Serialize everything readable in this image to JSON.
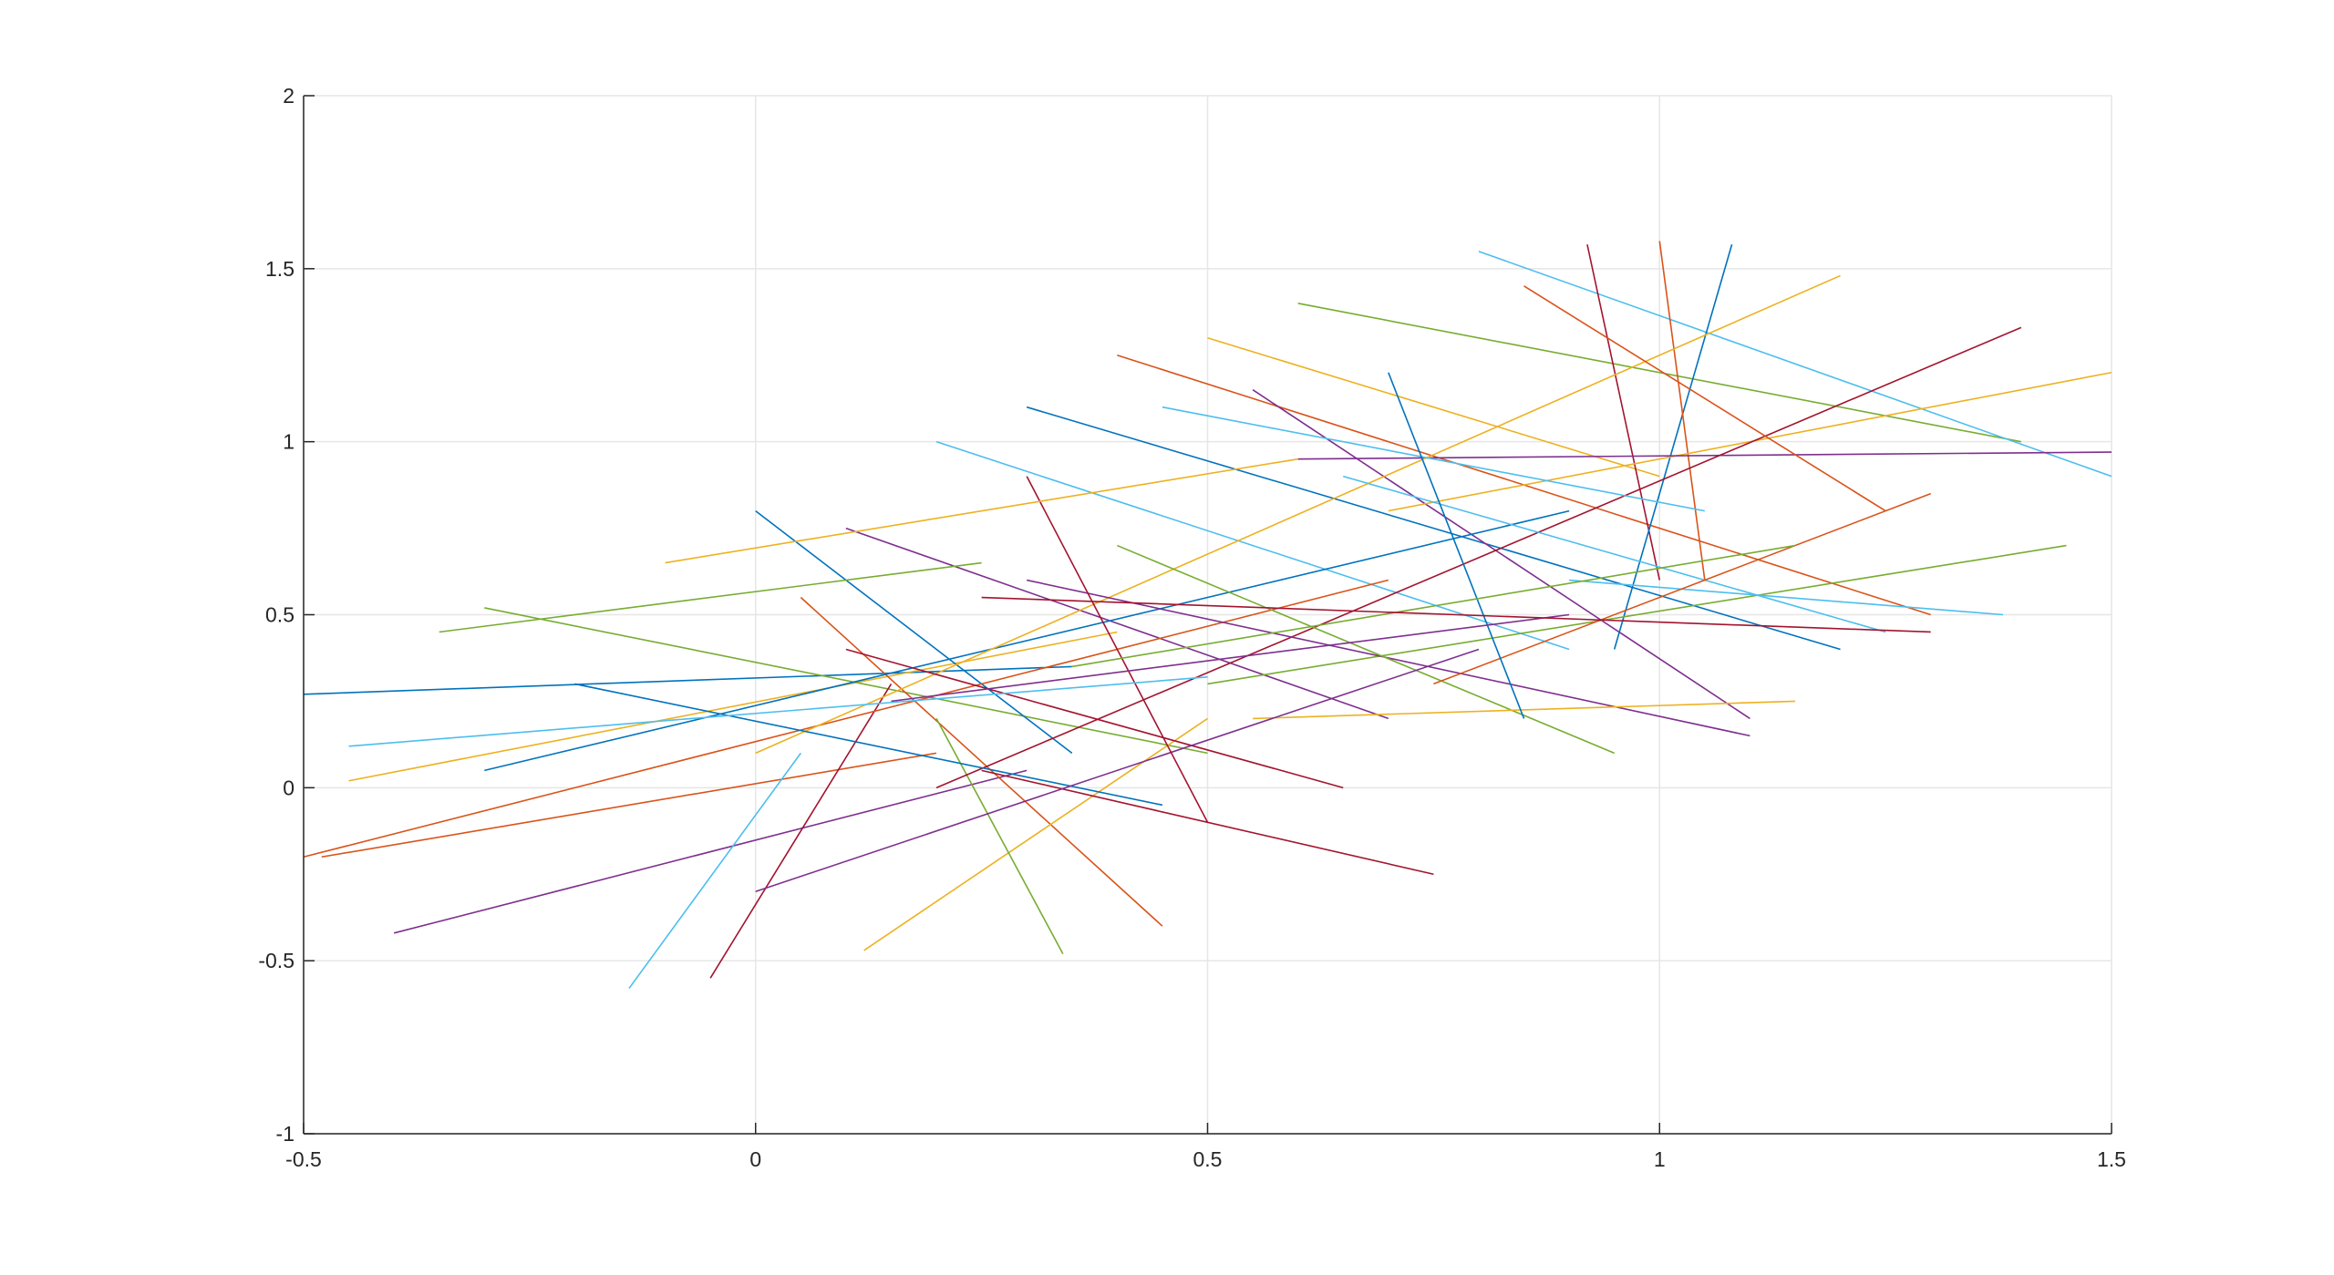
{
  "chart_data": {
    "type": "line",
    "xlim": [
      -0.5,
      1.5
    ],
    "xticks": [
      -0.5,
      0,
      0.5,
      1,
      1.5
    ],
    "ylim": [
      -1,
      2
    ],
    "yticks": [
      -1,
      -0.5,
      0,
      0.5,
      1,
      1.5,
      2
    ],
    "grid": true,
    "series": [
      {
        "color": "#0072bd",
        "x": [
          -0.5,
          0.35
        ],
        "values": [
          0.27,
          0.35
        ]
      },
      {
        "color": "#d95319",
        "x": [
          -0.48,
          0.2
        ],
        "values": [
          -0.2,
          0.1
        ]
      },
      {
        "color": "#edb120",
        "x": [
          -0.45,
          0.4
        ],
        "values": [
          0.02,
          0.45
        ]
      },
      {
        "color": "#7e2f8e",
        "x": [
          -0.4,
          0.3
        ],
        "values": [
          -0.42,
          0.05
        ]
      },
      {
        "color": "#77ac30",
        "x": [
          -0.3,
          0.5
        ],
        "values": [
          0.52,
          0.1
        ]
      },
      {
        "color": "#4dbeee",
        "x": [
          -0.14,
          0.05
        ],
        "values": [
          -0.58,
          0.1
        ]
      },
      {
        "color": "#a2142f",
        "x": [
          -0.05,
          0.15
        ],
        "values": [
          -0.55,
          0.3
        ]
      },
      {
        "color": "#0072bd",
        "x": [
          0,
          0.35
        ],
        "values": [
          0.8,
          0.1
        ]
      },
      {
        "color": "#d95319",
        "x": [
          0.05,
          0.45
        ],
        "values": [
          0.55,
          -0.4
        ]
      },
      {
        "color": "#edb120",
        "x": [
          0.12,
          0.5
        ],
        "values": [
          -0.47,
          0.2
        ]
      },
      {
        "color": "#7e2f8e",
        "x": [
          0.1,
          0.7
        ],
        "values": [
          0.75,
          0.2
        ]
      },
      {
        "color": "#77ac30",
        "x": [
          0.2,
          0.34
        ],
        "values": [
          0.2,
          -0.48
        ]
      },
      {
        "color": "#4dbeee",
        "x": [
          0.2,
          0.9
        ],
        "values": [
          1.0,
          0.4
        ]
      },
      {
        "color": "#a2142f",
        "x": [
          0.25,
          0.75
        ],
        "values": [
          0.05,
          -0.25
        ]
      },
      {
        "color": "#0072bd",
        "x": [
          0.3,
          1.2
        ],
        "values": [
          1.1,
          0.4
        ]
      },
      {
        "color": "#d95319",
        "x": [
          0.4,
          1.3
        ],
        "values": [
          1.25,
          0.5
        ]
      },
      {
        "color": "#edb120",
        "x": [
          0.5,
          1.0
        ],
        "values": [
          1.3,
          0.9
        ]
      },
      {
        "color": "#7e2f8e",
        "x": [
          0.55,
          1.1
        ],
        "values": [
          1.15,
          0.2
        ]
      },
      {
        "color": "#77ac30",
        "x": [
          0.6,
          1.4
        ],
        "values": [
          1.4,
          1.0
        ]
      },
      {
        "color": "#4dbeee",
        "x": [
          0.8,
          1.5
        ],
        "values": [
          1.55,
          0.9
        ]
      },
      {
        "color": "#a2142f",
        "x": [
          0.92,
          1.0
        ],
        "values": [
          1.57,
          0.6
        ]
      },
      {
        "color": "#0072bd",
        "x": [
          0.95,
          1.08
        ],
        "values": [
          0.4,
          1.57
        ]
      },
      {
        "color": "#d95319",
        "x": [
          1.0,
          1.05
        ],
        "values": [
          1.58,
          0.6
        ]
      },
      {
        "color": "#edb120",
        "x": [
          0.7,
          1.5
        ],
        "values": [
          0.8,
          1.2
        ]
      },
      {
        "color": "#7e2f8e",
        "x": [
          0.6,
          1.5
        ],
        "values": [
          0.95,
          0.97
        ]
      },
      {
        "color": "#77ac30",
        "x": [
          0.5,
          1.45
        ],
        "values": [
          0.3,
          0.7
        ]
      },
      {
        "color": "#4dbeee",
        "x": [
          0.9,
          1.38
        ],
        "values": [
          0.6,
          0.5
        ]
      },
      {
        "color": "#a2142f",
        "x": [
          0.2,
          1.4
        ],
        "values": [
          0.0,
          1.33
        ]
      },
      {
        "color": "#0072bd",
        "x": [
          -0.3,
          0.9
        ],
        "values": [
          0.05,
          0.8
        ]
      },
      {
        "color": "#d95319",
        "x": [
          -0.5,
          0.7
        ],
        "values": [
          -0.2,
          0.6
        ]
      },
      {
        "color": "#edb120",
        "x": [
          0.0,
          1.2
        ],
        "values": [
          0.1,
          1.48
        ]
      },
      {
        "color": "#7e2f8e",
        "x": [
          0.3,
          1.1
        ],
        "values": [
          0.6,
          0.15
        ]
      },
      {
        "color": "#77ac30",
        "x": [
          0.4,
          0.95
        ],
        "values": [
          0.7,
          0.1
        ]
      },
      {
        "color": "#4dbeee",
        "x": [
          0.65,
          1.25
        ],
        "values": [
          0.9,
          0.45
        ]
      },
      {
        "color": "#a2142f",
        "x": [
          0.1,
          0.65
        ],
        "values": [
          0.4,
          0.0
        ]
      },
      {
        "color": "#0072bd",
        "x": [
          -0.2,
          0.45
        ],
        "values": [
          0.3,
          -0.05
        ]
      },
      {
        "color": "#d95319",
        "x": [
          0.75,
          1.3
        ],
        "values": [
          0.3,
          0.85
        ]
      },
      {
        "color": "#edb120",
        "x": [
          0.55,
          1.15
        ],
        "values": [
          0.2,
          0.25
        ]
      },
      {
        "color": "#7e2f8e",
        "x": [
          0.0,
          0.8
        ],
        "values": [
          -0.3,
          0.4
        ]
      },
      {
        "color": "#77ac30",
        "x": [
          -0.35,
          0.25
        ],
        "values": [
          0.45,
          0.65
        ]
      },
      {
        "color": "#4dbeee",
        "x": [
          0.45,
          1.05
        ],
        "values": [
          1.1,
          0.8
        ]
      },
      {
        "color": "#a2142f",
        "x": [
          0.3,
          0.5
        ],
        "values": [
          0.9,
          -0.1
        ]
      },
      {
        "color": "#0072bd",
        "x": [
          0.7,
          0.85
        ],
        "values": [
          1.2,
          0.2
        ]
      },
      {
        "color": "#d95319",
        "x": [
          0.85,
          1.25
        ],
        "values": [
          1.45,
          0.8
        ]
      },
      {
        "color": "#edb120",
        "x": [
          -0.1,
          0.6
        ],
        "values": [
          0.65,
          0.95
        ]
      },
      {
        "color": "#7e2f8e",
        "x": [
          0.15,
          0.9
        ],
        "values": [
          0.25,
          0.5
        ]
      },
      {
        "color": "#77ac30",
        "x": [
          0.35,
          1.15
        ],
        "values": [
          0.35,
          0.7
        ]
      },
      {
        "color": "#4dbeee",
        "x": [
          -0.45,
          0.5
        ],
        "values": [
          0.12,
          0.32
        ]
      },
      {
        "color": "#a2142f",
        "x": [
          0.25,
          1.3
        ],
        "values": [
          0.55,
          0.45
        ]
      }
    ]
  }
}
